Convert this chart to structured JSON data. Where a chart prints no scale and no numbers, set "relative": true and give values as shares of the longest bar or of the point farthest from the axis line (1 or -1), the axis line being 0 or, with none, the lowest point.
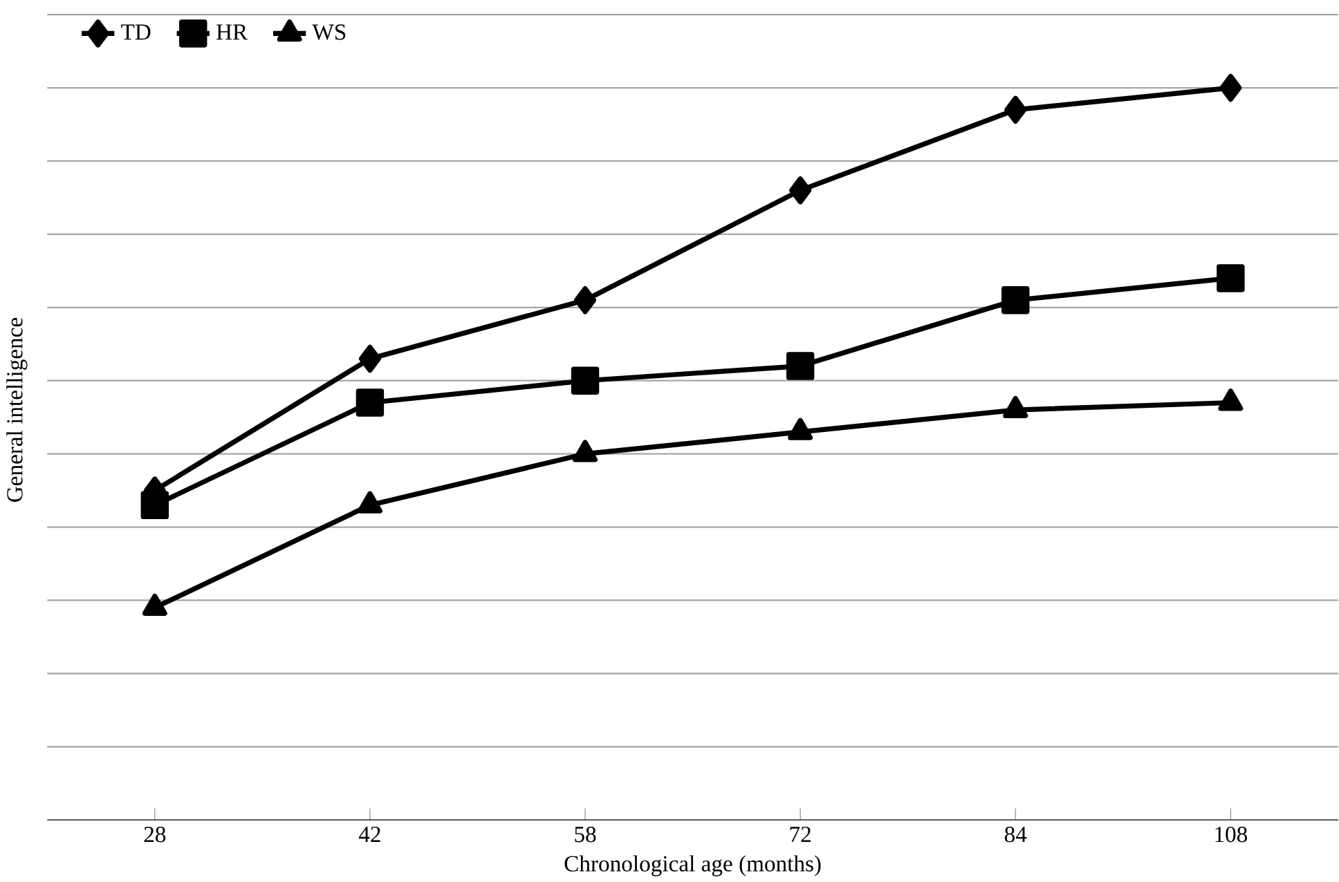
{
  "chart_data": {
    "type": "line",
    "relative": true,
    "xlabel": "Chronological age (months)",
    "ylabel": "General intelligence",
    "categories": [
      "28",
      "42",
      "58",
      "72",
      "84",
      "108"
    ],
    "series": [
      {
        "name": "TD",
        "color": "#000000",
        "marker": "diamond",
        "values": [
          0.45,
          0.63,
          0.71,
          0.86,
          0.97,
          1
        ]
      },
      {
        "name": "HR",
        "color": "#000000",
        "marker": "square",
        "values": [
          0.43,
          0.57,
          0.6,
          0.62,
          0.71,
          0.74
        ]
      },
      {
        "name": "WS",
        "color": "#000000",
        "marker": "triangle",
        "values": [
          0.29,
          0.43,
          0.5,
          0.53,
          0.56,
          0.57
        ]
      }
    ],
    "grid": "y",
    "legend": "top left",
    "line_style": "solid"
  }
}
